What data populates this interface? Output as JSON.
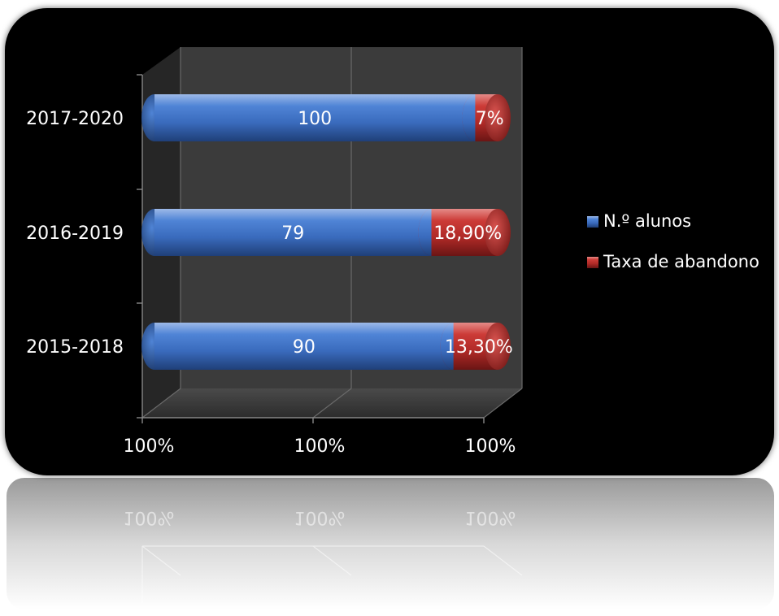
{
  "chart_data": {
    "type": "bar",
    "orientation": "horizontal",
    "stacked": true,
    "percent_stacked": true,
    "style": "3d-cylinder",
    "categories": [
      "2017-2020",
      "2016-2019",
      "2015-2018"
    ],
    "series": [
      {
        "name": "N.º alunos",
        "color": "#3b6fc4",
        "values": [
          100,
          79,
          90
        ],
        "labels": [
          "100",
          "79",
          "90"
        ]
      },
      {
        "name": "Taxa de abandono",
        "color": "#c0302e",
        "values": [
          7,
          18.9,
          13.3
        ],
        "labels": [
          "7%",
          "18,90%",
          "13,30%"
        ]
      }
    ],
    "x_tick_labels": [
      "100%",
      "100%",
      "100%"
    ],
    "grid": true,
    "legend": "right",
    "background": "#000000",
    "wall_color": "#3a3a3a",
    "reflection": true
  }
}
